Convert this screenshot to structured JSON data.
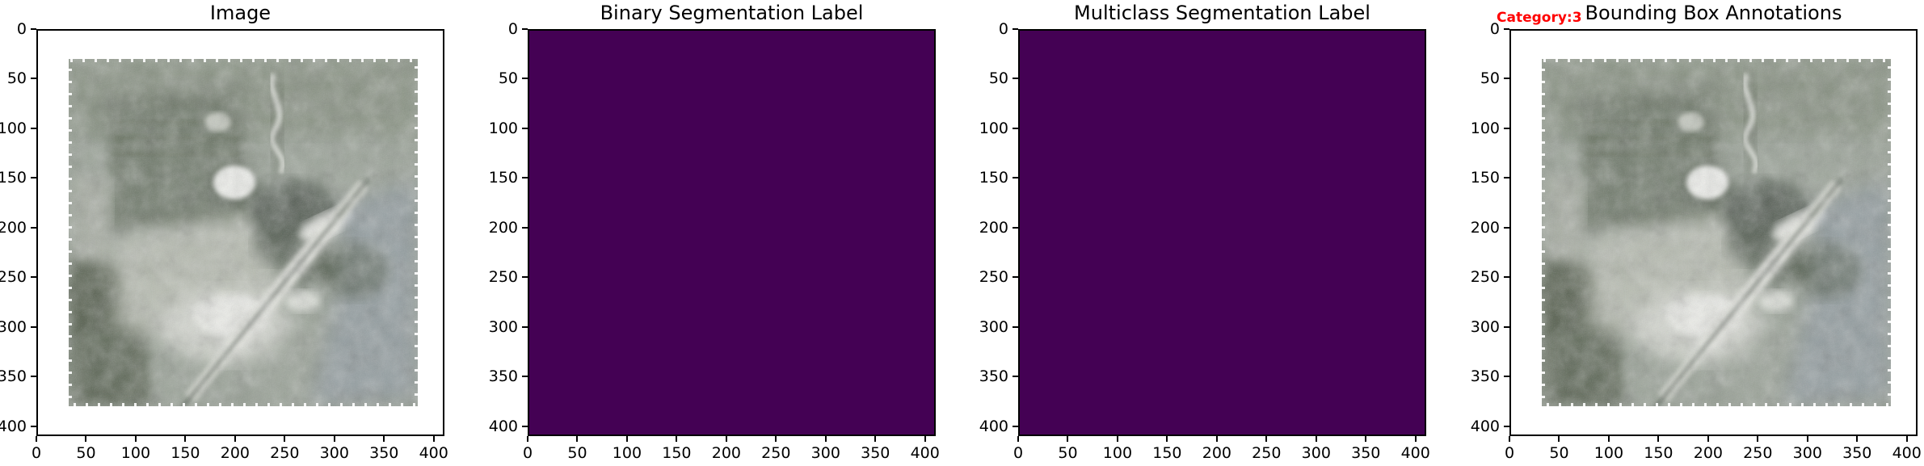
{
  "figure": {
    "kind": "matplotlib multi-panel dataset sample visualization",
    "background": "#ffffff"
  },
  "colors": {
    "label_fill": "#440154",
    "annotation": "#ff0000",
    "axis": "#000000",
    "text": "#000000"
  },
  "axes": {
    "x_ticks": [
      0,
      50,
      100,
      150,
      200,
      250,
      300,
      350,
      400
    ],
    "y_ticks": [
      0,
      50,
      100,
      150,
      200,
      250,
      300,
      350,
      400
    ],
    "x_range": [
      0,
      410
    ],
    "y_range": [
      0,
      410
    ]
  },
  "panels": [
    {
      "title": "Image",
      "type": "image",
      "content": "grayscale aerial photograph: dark field top-left, white building blobs, winding light stream, diagonal light road with dark centerline, bluish area lower right, dashed ragged white image edges",
      "image_extent": {
        "x": [
          30,
          382
        ],
        "y": [
          30,
          380
        ]
      }
    },
    {
      "title": "Binary Segmentation Label",
      "type": "heatmap",
      "uniform_value": 0,
      "colormap": "viridis",
      "fill": "#440154"
    },
    {
      "title": "Multiclass Segmentation Label",
      "type": "heatmap",
      "uniform_value": 0,
      "colormap": "viridis",
      "fill": "#440154"
    },
    {
      "title": "Bounding Box Annotations",
      "type": "image",
      "content": "same grayscale aerial photograph as panel 1",
      "image_extent": {
        "x": [
          30,
          382
        ],
        "y": [
          30,
          380
        ]
      },
      "annotation": {
        "label": "Category:3",
        "color": "#ff0000"
      }
    }
  ],
  "chart_data": [
    {
      "type": "image",
      "title": "Image",
      "xlabel": "",
      "ylabel": "",
      "x_ticks": [
        0,
        50,
        100,
        150,
        200,
        250,
        300,
        350,
        400
      ],
      "y_ticks": [
        0,
        50,
        100,
        150,
        200,
        250,
        300,
        350,
        400
      ],
      "xlim": [
        0,
        410
      ],
      "ylim": [
        410,
        0
      ],
      "grid": false,
      "legend": "none",
      "description": "grayscale aerial image occupying data region x 30-382, y 30-380 inside white axes"
    },
    {
      "type": "heatmap",
      "title": "Binary Segmentation Label",
      "x_ticks": [
        0,
        50,
        100,
        150,
        200,
        250,
        300,
        350,
        400
      ],
      "y_ticks": [
        0,
        50,
        100,
        150,
        200,
        250,
        300,
        350,
        400
      ],
      "xlim": [
        0,
        410
      ],
      "ylim": [
        410,
        0
      ],
      "grid": false,
      "legend": "none",
      "values": "uniform 0 (all background)",
      "colormap": "viridis",
      "rendered_color": "#440154"
    },
    {
      "type": "heatmap",
      "title": "Multiclass Segmentation Label",
      "x_ticks": [
        0,
        50,
        100,
        150,
        200,
        250,
        300,
        350,
        400
      ],
      "y_ticks": [
        0,
        50,
        100,
        150,
        200,
        250,
        300,
        350,
        400
      ],
      "xlim": [
        0,
        410
      ],
      "ylim": [
        410,
        0
      ],
      "grid": false,
      "legend": "none",
      "values": "uniform 0 (all background)",
      "colormap": "viridis",
      "rendered_color": "#440154"
    },
    {
      "type": "image",
      "title": "Bounding Box Annotations",
      "x_ticks": [
        0,
        50,
        100,
        150,
        200,
        250,
        300,
        350,
        400
      ],
      "y_ticks": [
        0,
        50,
        100,
        150,
        200,
        250,
        300,
        350,
        400
      ],
      "xlim": [
        0,
        410
      ],
      "ylim": [
        410,
        0
      ],
      "grid": false,
      "legend": "none",
      "annotations": [
        {
          "text": "Category:3",
          "color": "#ff0000",
          "position": "top-left above axes, overlapped by title"
        }
      ],
      "description": "same aerial image as panel 1"
    }
  ]
}
